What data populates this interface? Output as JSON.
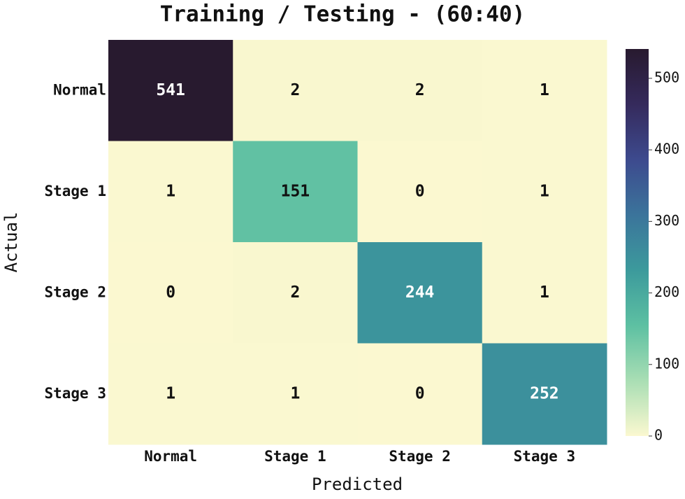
{
  "chart_data": {
    "type": "heatmap",
    "title": "Training / Testing - (60:40)",
    "x_label": "Predicted",
    "y_label": "Actual",
    "x_categories": [
      "Normal",
      "Stage 1",
      "Stage 2",
      "Stage 3"
    ],
    "y_categories": [
      "Normal",
      "Stage 1",
      "Stage 2",
      "Stage 3"
    ],
    "values": [
      [
        541,
        2,
        2,
        1
      ],
      [
        1,
        151,
        0,
        1
      ],
      [
        0,
        2,
        244,
        1
      ],
      [
        1,
        1,
        0,
        252
      ]
    ],
    "zlim": [
      0,
      541
    ],
    "zticks": [
      0,
      100,
      200,
      300,
      400,
      500
    ],
    "colorscale": [
      "#fbf8d0",
      "#a9deb4",
      "#5dc0a2",
      "#3c9a9c",
      "#3b749b",
      "#3d4a8e",
      "#352a5c",
      "#281a2f"
    ]
  }
}
